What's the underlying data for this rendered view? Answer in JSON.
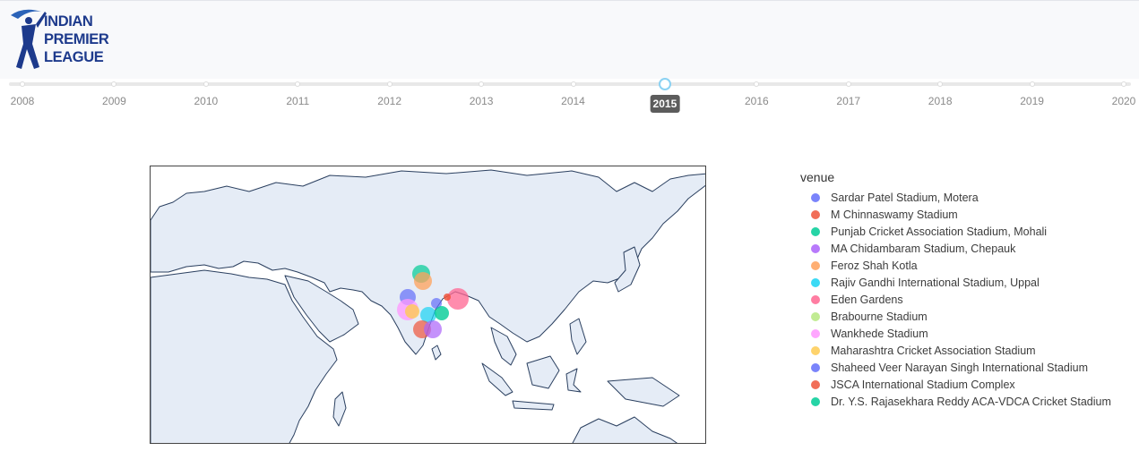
{
  "header": {
    "logo_lines": [
      "INDIAN",
      "PREMIER",
      "LEAGUE"
    ]
  },
  "slider": {
    "years": [
      "2008",
      "2009",
      "2010",
      "2011",
      "2012",
      "2013",
      "2014",
      "2015",
      "2016",
      "2017",
      "2018",
      "2019",
      "2020"
    ],
    "active_year": "2015",
    "handle_color": "#8bd2f3"
  },
  "legend": {
    "title": "venue",
    "items": [
      {
        "label": "Sardar Patel Stadium, Motera",
        "color": "#636efa"
      },
      {
        "label": "M Chinnaswamy Stadium",
        "color": "#ef553b"
      },
      {
        "label": "Punjab Cricket Association Stadium, Mohali",
        "color": "#00cc96"
      },
      {
        "label": "MA Chidambaram Stadium, Chepauk",
        "color": "#ab63fa"
      },
      {
        "label": "Feroz Shah Kotla",
        "color": "#ffa15a"
      },
      {
        "label": "Rajiv Gandhi International Stadium, Uppal",
        "color": "#19d3f3"
      },
      {
        "label": "Eden Gardens",
        "color": "#ff6692"
      },
      {
        "label": "Brabourne Stadium",
        "color": "#b6e880"
      },
      {
        "label": "Wankhede Stadium",
        "color": "#ff97ff"
      },
      {
        "label": "Maharashtra Cricket Association Stadium",
        "color": "#fecb52"
      },
      {
        "label": "Shaheed Veer Narayan Singh International Stadium",
        "color": "#636efa"
      },
      {
        "label": "JSCA International Stadium Complex",
        "color": "#ef553b"
      },
      {
        "label": "Dr. Y.S. Rajasekhara Reddy ACA-VDCA Cricket Stadium",
        "color": "#00cc96"
      }
    ]
  },
  "map": {
    "land_color": "#e5ecf6",
    "coast_color": "#2a3f5f"
  }
}
